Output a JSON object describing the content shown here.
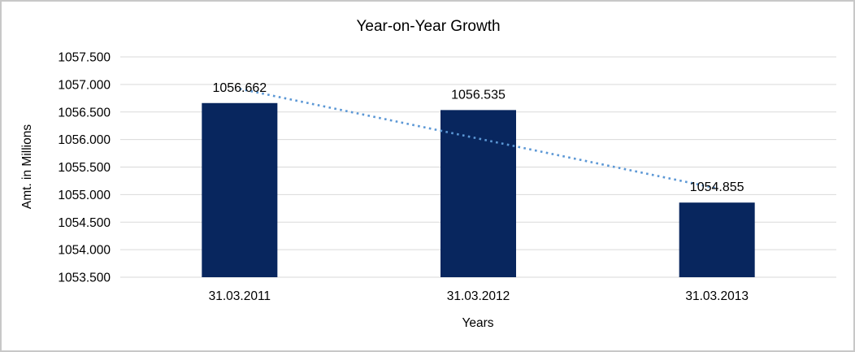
{
  "chart_data": {
    "type": "bar",
    "title": "Year-on-Year Growth",
    "xlabel": "Years",
    "ylabel": "Amt. in Millions",
    "categories": [
      "31.03.2011",
      "31.03.2012",
      "31.03.2013"
    ],
    "values": [
      1056.662,
      1056.535,
      1054.855
    ],
    "data_labels": [
      "1056.662",
      "1056.535",
      "1054.855"
    ],
    "y_ticks": [
      "1053.500",
      "1054.000",
      "1054.500",
      "1055.000",
      "1055.500",
      "1056.000",
      "1056.500",
      "1057.000",
      "1057.500"
    ],
    "ylim": [
      1053.5,
      1057.5
    ],
    "grid": true,
    "legend_position": "none",
    "bar_color": "#08265e",
    "trendline": {
      "present": true,
      "fit": "linear",
      "style": "dotted",
      "color": "#5b97d5"
    },
    "gridline_color": "#d9d9d9",
    "text_color": "#000000",
    "frame_border_color": "#c8c8c8",
    "background_color": "#ffffff"
  }
}
